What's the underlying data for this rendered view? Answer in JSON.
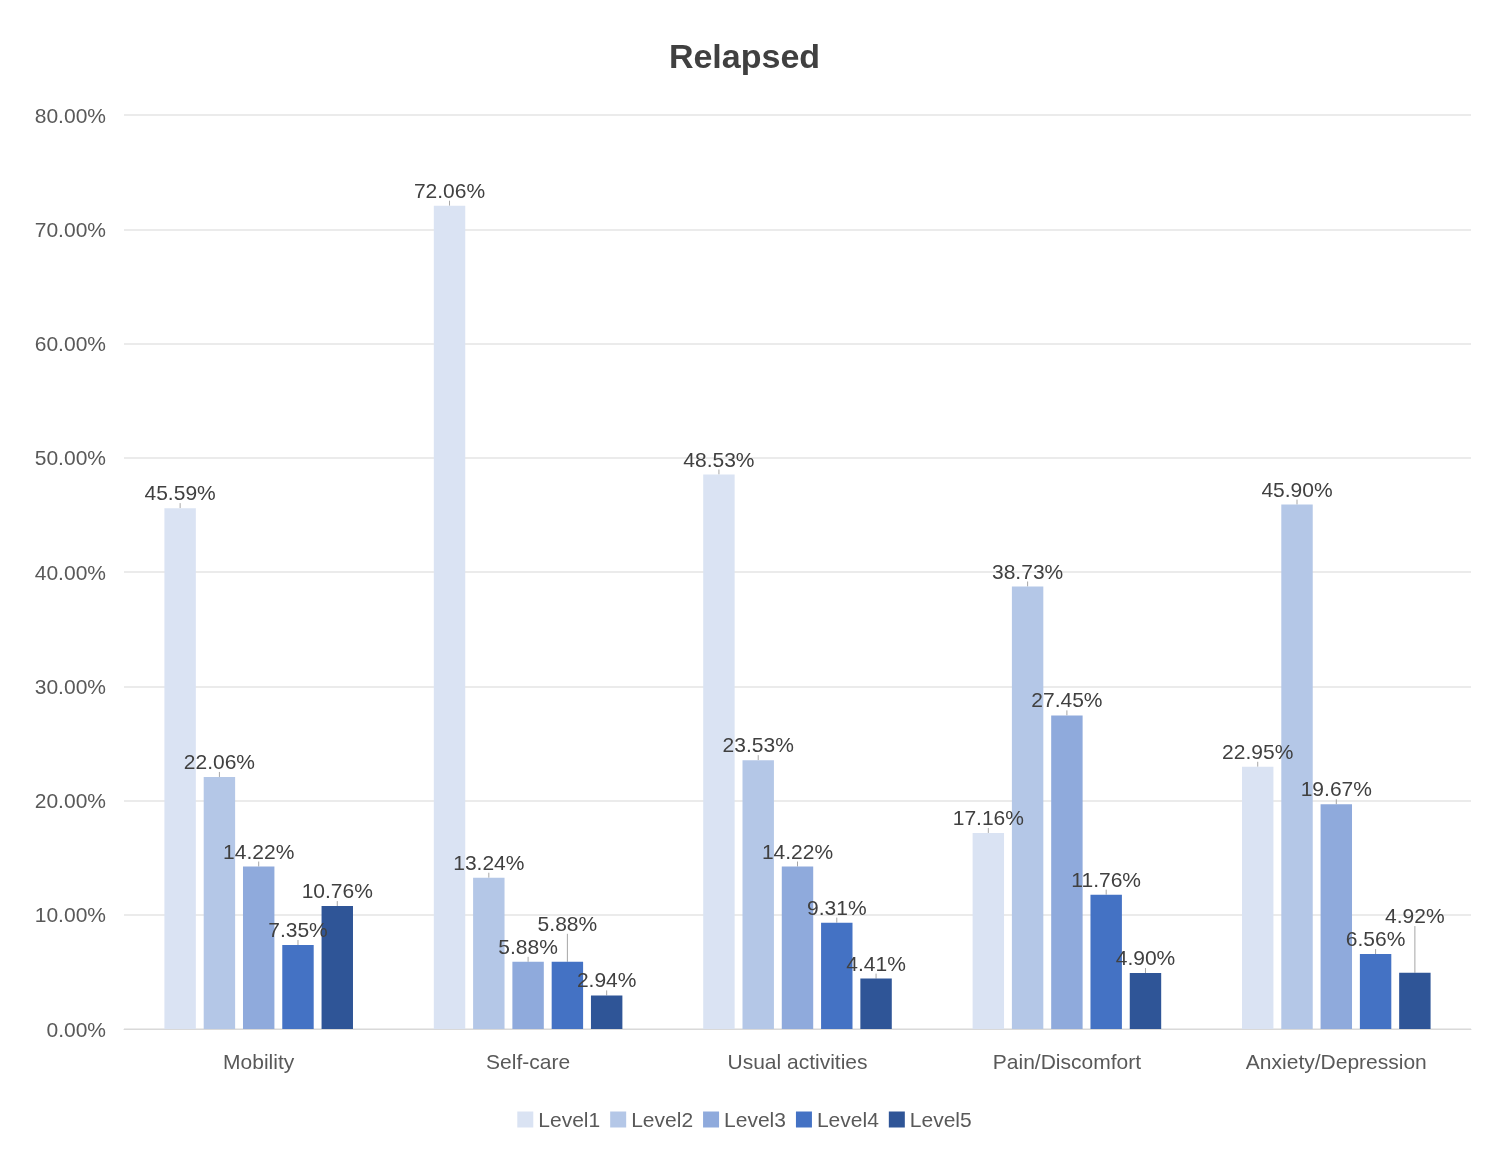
{
  "chart_data": {
    "type": "bar",
    "title": "Relapsed",
    "categories": [
      "Mobility",
      "Self-care",
      "Usual activities",
      "Pain/Discomfort",
      "Anxiety/Depression"
    ],
    "series": [
      {
        "name": "Level1",
        "color": "#dae3f3",
        "values": [
          45.59,
          72.06,
          48.53,
          17.16,
          22.95
        ],
        "value_labels": [
          "45.59%",
          "72.06%",
          "48.53%",
          "17.16%",
          "22.95%"
        ]
      },
      {
        "name": "Level2",
        "color": "#b4c7e7",
        "values": [
          22.06,
          13.24,
          23.53,
          38.73,
          45.9
        ],
        "value_labels": [
          "22.06%",
          "13.24%",
          "23.53%",
          "38.73%",
          "45.90%"
        ]
      },
      {
        "name": "Level3",
        "color": "#8faadc",
        "values": [
          14.22,
          5.88,
          14.22,
          27.45,
          19.67
        ],
        "value_labels": [
          "14.22%",
          "5.88%",
          "14.22%",
          "27.45%",
          "19.67%"
        ]
      },
      {
        "name": "Level4",
        "color": "#4472c4",
        "values": [
          7.35,
          5.88,
          9.31,
          11.76,
          6.56
        ],
        "value_labels": [
          "7.35%",
          "5.88%",
          "9.31%",
          "11.76%",
          "6.56%"
        ]
      },
      {
        "name": "Level5",
        "color": "#2f5597",
        "values": [
          10.76,
          2.94,
          4.41,
          4.9,
          4.92
        ],
        "value_labels": [
          "10.76%",
          "2.94%",
          "4.41%",
          "4.90%",
          "4.92%"
        ]
      }
    ],
    "ylim": [
      0,
      80
    ],
    "yticks": [
      {
        "value": 0,
        "label": "0.00%"
      },
      {
        "value": 10,
        "label": "10.00%"
      },
      {
        "value": 20,
        "label": "20.00%"
      },
      {
        "value": 30,
        "label": "30.00%"
      },
      {
        "value": 40,
        "label": "40.00%"
      },
      {
        "value": 50,
        "label": "50.00%"
      },
      {
        "value": 60,
        "label": "60.00%"
      },
      {
        "value": 70,
        "label": "70.00%"
      },
      {
        "value": 80,
        "label": "80.00%"
      }
    ],
    "grid": "y",
    "legend": "bottom"
  }
}
